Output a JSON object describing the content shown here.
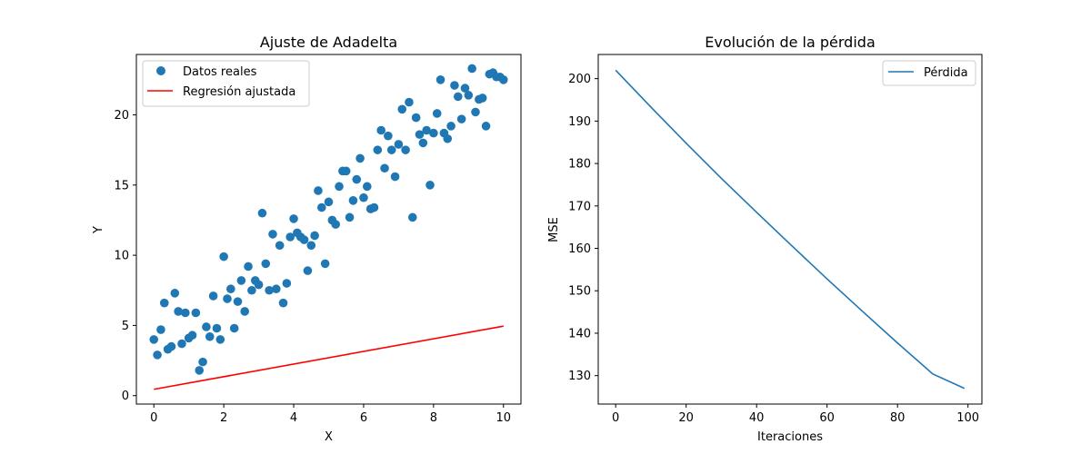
{
  "chart_data": [
    {
      "type": "scatter",
      "title": "Ajuste de Adadelta",
      "xlabel": "X",
      "ylabel": "Y",
      "xlim": [
        -0.5,
        10.5
      ],
      "ylim": [
        -0.6,
        24.3
      ],
      "xticks": [
        0,
        2,
        4,
        6,
        8,
        10
      ],
      "yticks": [
        0,
        5,
        10,
        15,
        20
      ],
      "grid": false,
      "legend_position": "top-left",
      "colors": {
        "scatter": "#1f77b4",
        "line": "#ff0000"
      },
      "series": [
        {
          "name": "Datos reales",
          "kind": "scatter",
          "x": [
            0.0,
            0.1,
            0.2,
            0.3,
            0.4,
            0.5,
            0.6,
            0.7,
            0.8,
            0.9,
            1.0,
            1.1,
            1.2,
            1.3,
            1.4,
            1.5,
            1.6,
            1.7,
            1.8,
            1.9,
            2.0,
            2.1,
            2.2,
            2.3,
            2.4,
            2.5,
            2.6,
            2.7,
            2.8,
            2.9,
            3.0,
            3.1,
            3.2,
            3.3,
            3.4,
            3.5,
            3.6,
            3.7,
            3.8,
            3.9,
            4.0,
            4.1,
            4.2,
            4.3,
            4.4,
            4.5,
            4.6,
            4.7,
            4.8,
            4.9,
            5.0,
            5.1,
            5.2,
            5.3,
            5.4,
            5.5,
            5.6,
            5.7,
            5.8,
            5.9,
            6.0,
            6.1,
            6.2,
            6.3,
            6.4,
            6.5,
            6.6,
            6.7,
            6.8,
            6.9,
            7.0,
            7.1,
            7.2,
            7.3,
            7.4,
            7.5,
            7.6,
            7.7,
            7.8,
            7.9,
            8.0,
            8.1,
            8.2,
            8.3,
            8.4,
            8.5,
            8.6,
            8.7,
            8.8,
            8.9,
            9.0,
            9.1,
            9.2,
            9.3,
            9.4,
            9.5,
            9.6,
            9.7,
            9.8,
            9.9,
            10.0
          ],
          "y": [
            4.0,
            2.9,
            4.7,
            6.6,
            3.3,
            3.5,
            7.3,
            6.0,
            3.7,
            5.9,
            4.1,
            4.3,
            5.9,
            1.8,
            2.4,
            4.9,
            4.2,
            7.1,
            4.8,
            4.0,
            9.9,
            6.9,
            7.6,
            4.8,
            6.7,
            8.2,
            6.0,
            9.2,
            7.5,
            8.2,
            7.9,
            13.0,
            9.4,
            7.5,
            11.5,
            7.6,
            10.7,
            6.6,
            8.0,
            11.3,
            12.6,
            11.6,
            11.3,
            11.1,
            8.9,
            10.7,
            11.4,
            14.6,
            13.4,
            9.4,
            13.8,
            12.5,
            12.2,
            14.9,
            16.0,
            16.0,
            12.7,
            13.9,
            15.4,
            16.9,
            14.1,
            14.9,
            13.3,
            13.4,
            17.5,
            18.9,
            16.2,
            18.5,
            17.5,
            15.6,
            17.9,
            20.4,
            17.5,
            20.9,
            12.7,
            19.8,
            18.6,
            18.0,
            18.9,
            15.0,
            18.7,
            20.1,
            22.5,
            18.7,
            18.3,
            19.2,
            22.1,
            21.3,
            19.7,
            21.9,
            21.4,
            23.3,
            20.2,
            21.1,
            21.2,
            19.2,
            22.9,
            23.0,
            22.7,
            22.7,
            22.5
          ]
        },
        {
          "name": "Regresión ajustada",
          "kind": "line",
          "x": [
            0,
            10
          ],
          "y": [
            0.45,
            4.95
          ]
        }
      ]
    },
    {
      "type": "line",
      "title": "Evolución de la pérdida",
      "xlabel": "Iteraciones",
      "ylabel": "MSE",
      "xlim": [
        -4.95,
        103.95
      ],
      "ylim": [
        123.3,
        205.7
      ],
      "xticks": [
        0,
        20,
        40,
        60,
        80,
        100
      ],
      "yticks": [
        130,
        140,
        150,
        160,
        170,
        180,
        190,
        200
      ],
      "grid": false,
      "legend_position": "top-right",
      "colors": {
        "line": "#1f77b4"
      },
      "series": [
        {
          "name": "Pérdida",
          "kind": "line",
          "x": [
            0,
            10,
            20,
            30,
            40,
            50,
            60,
            70,
            80,
            90,
            99
          ],
          "y": [
            202.0,
            193.3,
            184.8,
            176.5,
            168.5,
            160.6,
            152.8,
            145.2,
            137.7,
            130.4,
            127.0
          ]
        }
      ]
    }
  ]
}
